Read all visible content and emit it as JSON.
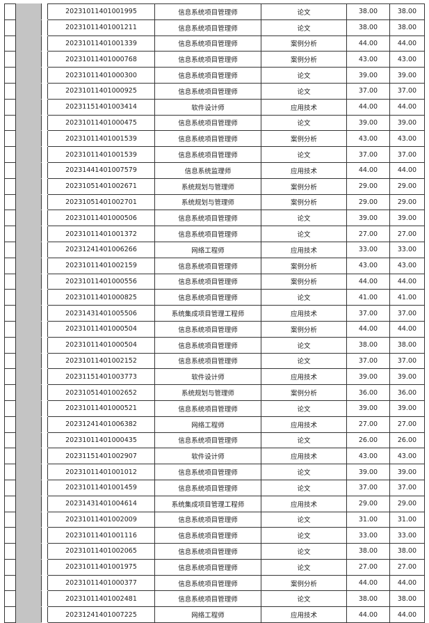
{
  "rows": [
    {
      "id": "20231011401001995",
      "exam": "信息系统项目管理师",
      "subject": "论文",
      "score": "38.00",
      "final": "38.00"
    },
    {
      "id": "20231011401001211",
      "exam": "信息系统项目管理师",
      "subject": "论文",
      "score": "38.00",
      "final": "38.00"
    },
    {
      "id": "20231011401001339",
      "exam": "信息系统项目管理师",
      "subject": "案例分析",
      "score": "44.00",
      "final": "44.00"
    },
    {
      "id": "20231011401000768",
      "exam": "信息系统项目管理师",
      "subject": "案例分析",
      "score": "43.00",
      "final": "43.00"
    },
    {
      "id": "20231011401000300",
      "exam": "信息系统项目管理师",
      "subject": "论文",
      "score": "39.00",
      "final": "39.00"
    },
    {
      "id": "20231011401000925",
      "exam": "信息系统项目管理师",
      "subject": "论文",
      "score": "37.00",
      "final": "37.00"
    },
    {
      "id": "20231151401003414",
      "exam": "软件设计师",
      "subject": "应用技术",
      "score": "44.00",
      "final": "44.00"
    },
    {
      "id": "20231011401000475",
      "exam": "信息系统项目管理师",
      "subject": "论文",
      "score": "39.00",
      "final": "39.00"
    },
    {
      "id": "20231011401001539",
      "exam": "信息系统项目管理师",
      "subject": "案例分析",
      "score": "43.00",
      "final": "43.00"
    },
    {
      "id": "20231011401001539",
      "exam": "信息系统项目管理师",
      "subject": "论文",
      "score": "37.00",
      "final": "37.00"
    },
    {
      "id": "20231441401007579",
      "exam": "信息系统监理师",
      "subject": "应用技术",
      "score": "44.00",
      "final": "44.00"
    },
    {
      "id": "20231051401002671",
      "exam": "系统规划与管理师",
      "subject": "案例分析",
      "score": "29.00",
      "final": "29.00"
    },
    {
      "id": "20231051401002701",
      "exam": "系统规划与管理师",
      "subject": "案例分析",
      "score": "29.00",
      "final": "29.00"
    },
    {
      "id": "20231011401000506",
      "exam": "信息系统项目管理师",
      "subject": "论文",
      "score": "39.00",
      "final": "39.00"
    },
    {
      "id": "20231011401001372",
      "exam": "信息系统项目管理师",
      "subject": "论文",
      "score": "27.00",
      "final": "27.00"
    },
    {
      "id": "20231241401006266",
      "exam": "网络工程师",
      "subject": "应用技术",
      "score": "33.00",
      "final": "33.00"
    },
    {
      "id": "20231011401002159",
      "exam": "信息系统项目管理师",
      "subject": "案例分析",
      "score": "43.00",
      "final": "43.00"
    },
    {
      "id": "20231011401000556",
      "exam": "信息系统项目管理师",
      "subject": "案例分析",
      "score": "44.00",
      "final": "44.00"
    },
    {
      "id": "20231011401000825",
      "exam": "信息系统项目管理师",
      "subject": "论文",
      "score": "41.00",
      "final": "41.00"
    },
    {
      "id": "20231431401005506",
      "exam": "系统集成项目管理工程师",
      "subject": "应用技术",
      "score": "37.00",
      "final": "37.00"
    },
    {
      "id": "20231011401000504",
      "exam": "信息系统项目管理师",
      "subject": "案例分析",
      "score": "44.00",
      "final": "44.00"
    },
    {
      "id": "20231011401000504",
      "exam": "信息系统项目管理师",
      "subject": "论文",
      "score": "38.00",
      "final": "38.00"
    },
    {
      "id": "20231011401002152",
      "exam": "信息系统项目管理师",
      "subject": "论文",
      "score": "37.00",
      "final": "37.00"
    },
    {
      "id": "20231151401003773",
      "exam": "软件设计师",
      "subject": "应用技术",
      "score": "39.00",
      "final": "39.00"
    },
    {
      "id": "20231051401002652",
      "exam": "系统规划与管理师",
      "subject": "案例分析",
      "score": "36.00",
      "final": "36.00"
    },
    {
      "id": "20231011401000521",
      "exam": "信息系统项目管理师",
      "subject": "论文",
      "score": "39.00",
      "final": "39.00"
    },
    {
      "id": "20231241401006382",
      "exam": "网络工程师",
      "subject": "应用技术",
      "score": "27.00",
      "final": "27.00"
    },
    {
      "id": "20231011401000435",
      "exam": "信息系统项目管理师",
      "subject": "论文",
      "score": "26.00",
      "final": "26.00"
    },
    {
      "id": "20231151401002907",
      "exam": "软件设计师",
      "subject": "应用技术",
      "score": "43.00",
      "final": "43.00"
    },
    {
      "id": "20231011401001012",
      "exam": "信息系统项目管理师",
      "subject": "论文",
      "score": "39.00",
      "final": "39.00"
    },
    {
      "id": "20231011401001459",
      "exam": "信息系统项目管理师",
      "subject": "论文",
      "score": "37.00",
      "final": "37.00"
    },
    {
      "id": "20231431401004614",
      "exam": "系统集成项目管理工程师",
      "subject": "应用技术",
      "score": "29.00",
      "final": "29.00"
    },
    {
      "id": "20231011401002009",
      "exam": "信息系统项目管理师",
      "subject": "论文",
      "score": "31.00",
      "final": "31.00"
    },
    {
      "id": "20231011401001116",
      "exam": "信息系统项目管理师",
      "subject": "论文",
      "score": "33.00",
      "final": "33.00"
    },
    {
      "id": "20231011401002065",
      "exam": "信息系统项目管理师",
      "subject": "论文",
      "score": "38.00",
      "final": "38.00"
    },
    {
      "id": "20231011401001975",
      "exam": "信息系统项目管理师",
      "subject": "论文",
      "score": "27.00",
      "final": "27.00"
    },
    {
      "id": "20231011401000377",
      "exam": "信息系统项目管理师",
      "subject": "案例分析",
      "score": "44.00",
      "final": "44.00"
    },
    {
      "id": "20231011401002481",
      "exam": "信息系统项目管理师",
      "subject": "论文",
      "score": "38.00",
      "final": "38.00"
    },
    {
      "id": "20231241401007225",
      "exam": "网络工程师",
      "subject": "应用技术",
      "score": "44.00",
      "final": "44.00"
    }
  ]
}
